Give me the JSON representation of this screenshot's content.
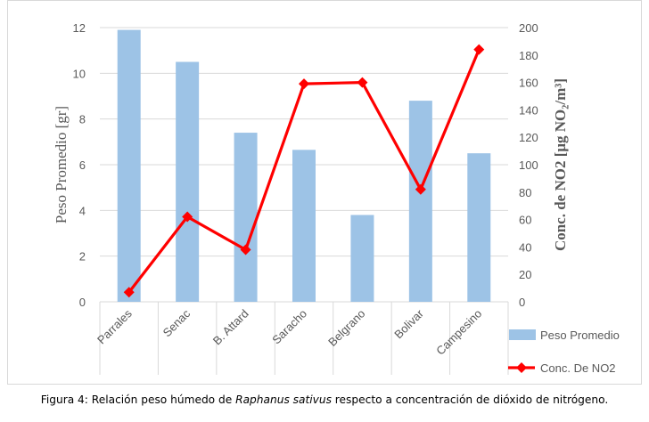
{
  "chart_data": {
    "type": "bar+line",
    "categories": [
      "Parrales",
      "Senac",
      "B. Attard",
      "Saracho",
      "Belgrano",
      "Bolivar",
      "Campesino"
    ],
    "series": [
      {
        "name": "Peso Promedio",
        "type": "bar",
        "axis": "left",
        "color": "#9dc3e6",
        "values": [
          11.9,
          10.5,
          7.4,
          6.65,
          3.8,
          8.8,
          6.5
        ]
      },
      {
        "name": "Conc. De NO2",
        "type": "line",
        "axis": "right",
        "color": "#ff0000",
        "marker": "diamond",
        "values": [
          7,
          62,
          38,
          159,
          160,
          82,
          184
        ]
      }
    ],
    "ylabel": "Peso Promedio [gr]",
    "y2label": "Conc. de NO2 [μg NO₂/m³]",
    "ylim": [
      0,
      12
    ],
    "yticks": [
      0,
      2,
      4,
      6,
      8,
      10,
      12
    ],
    "y2lim": [
      0,
      200
    ],
    "y2ticks": [
      0,
      20,
      40,
      60,
      80,
      100,
      120,
      140,
      160,
      180,
      200
    ],
    "grid": true,
    "legend": "right"
  },
  "caption": {
    "prefix": "Figura 4: Relación peso húmedo de ",
    "species": "Raphanus sativus",
    "suffix": " respecto a concentración de dióxido de nitrógeno."
  }
}
